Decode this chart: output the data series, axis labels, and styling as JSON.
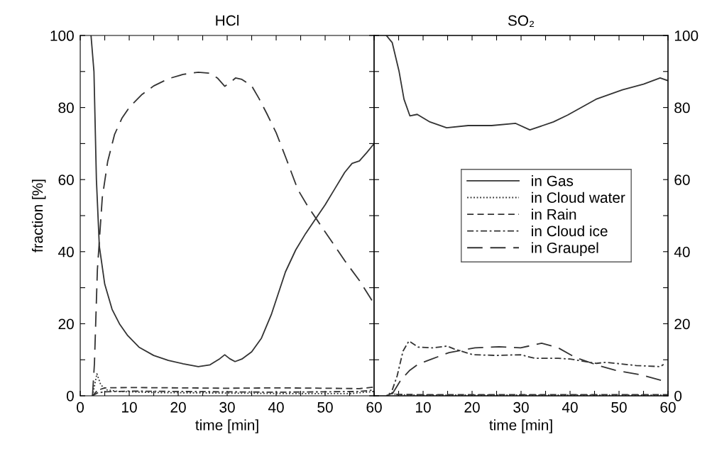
{
  "chart_data": [
    {
      "type": "line",
      "title": "HCl",
      "xlabel": "time [min]",
      "ylabel": "fraction [%]",
      "xlim": [
        0,
        60
      ],
      "xticks": [
        0,
        {
          "value": 5,
          "label": null
        },
        10,
        {
          "value": 15,
          "label": null
        },
        20,
        {
          "value": 25,
          "label": null
        },
        30,
        {
          "value": 35,
          "label": null
        },
        40,
        {
          "value": 45,
          "label": null
        },
        50,
        {
          "value": 55,
          "label": null
        },
        60
      ],
      "ylim": [
        0,
        100
      ],
      "yticks": [
        0,
        {
          "value": 10,
          "label": null
        },
        20,
        {
          "value": 30,
          "label": null
        },
        40,
        {
          "value": 50,
          "label": null
        },
        60,
        {
          "value": 70,
          "label": null
        },
        80,
        {
          "value": 90,
          "label": null
        },
        100
      ],
      "grid": false,
      "legend": false,
      "series": [
        {
          "color": "#333333",
          "line_style": "solid",
          "x": [
            2.2,
            2.8,
            3.3,
            3.9,
            5,
            6.5,
            8,
            9.7,
            12,
            15,
            18,
            21,
            24.1,
            26.5,
            28.5,
            29.5,
            30.5,
            31.6,
            33,
            35,
            37,
            39,
            41.9,
            44,
            46,
            48.2,
            50,
            52,
            54,
            55.5,
            57,
            58.5,
            60
          ],
          "values": [
            100,
            90,
            60,
            41.5,
            31,
            24,
            20,
            16.7,
            13.5,
            11.2,
            9.8,
            8.9,
            8.1,
            8.6,
            10.3,
            11.4,
            10.3,
            9.5,
            10.2,
            12.2,
            16,
            22.5,
            34.4,
            40.5,
            45,
            49.4,
            53,
            57.5,
            62,
            64.5,
            65.2,
            67.5,
            70
          ]
        },
        {
          "color": "#333333",
          "line_style": "dotted",
          "x": [
            2.5,
            3.4,
            4.2,
            5.5,
            8,
            15,
            25,
            35,
            45,
            55,
            60
          ],
          "values": [
            0,
            6.1,
            3,
            1.6,
            1.2,
            0.9,
            0.8,
            0.7,
            0.6,
            0.6,
            1.2
          ]
        },
        {
          "color": "#333333",
          "line_style": "dashed",
          "x": [
            2.5,
            3.5,
            5,
            10,
            20,
            30,
            40,
            50,
            57,
            60
          ],
          "values": [
            0,
            1.5,
            2.2,
            2.3,
            2.2,
            2.1,
            2.2,
            2.1,
            2.0,
            2.4
          ]
        },
        {
          "color": "#333333",
          "line_style": "dashdot",
          "x": [
            2.5,
            3.5,
            5,
            10,
            20,
            30,
            40,
            50,
            57,
            60
          ],
          "values": [
            0,
            0.8,
            1.1,
            1.3,
            1.2,
            1.1,
            1.0,
            1.1,
            1.2,
            1.6
          ]
        },
        {
          "color": "#333333",
          "line_style": "longdash",
          "x": [
            2.5,
            2.9,
            3.5,
            4.5,
            5.6,
            7,
            8.5,
            10,
            12.5,
            15,
            18,
            21,
            24.1,
            26.5,
            28,
            29.5,
            30.5,
            31.7,
            33,
            35,
            36.5,
            38.1,
            40,
            42,
            44.4,
            46.5,
            48.5,
            51,
            54,
            57,
            60
          ],
          "values": [
            0,
            9,
            35,
            55,
            65,
            72.5,
            77,
            80,
            83.5,
            86,
            88,
            89.2,
            89.8,
            89.5,
            88.2,
            85.9,
            86.8,
            88.2,
            87.8,
            86,
            82.5,
            78.3,
            73,
            66,
            57.3,
            52.5,
            48.5,
            43.5,
            37.5,
            32,
            25.5
          ]
        }
      ]
    },
    {
      "type": "line",
      "title": "SO₂",
      "xlabel": "time [min]",
      "xlim": [
        0,
        60
      ],
      "xticks": [
        {
          "value": 0,
          "label": null
        },
        {
          "value": 5,
          "label": null
        },
        10,
        {
          "value": 15,
          "label": null
        },
        20,
        {
          "value": 25,
          "label": null
        },
        30,
        {
          "value": 35,
          "label": null
        },
        40,
        {
          "value": 45,
          "label": null
        },
        50,
        {
          "value": 55,
          "label": null
        },
        60
      ],
      "y2lim": [
        0,
        100
      ],
      "y2ticks": [
        0,
        {
          "value": 10,
          "label": null
        },
        20,
        {
          "value": 30,
          "label": null
        },
        40,
        {
          "value": 50,
          "label": null
        },
        60,
        {
          "value": 70,
          "label": null
        },
        80,
        {
          "value": 90,
          "label": null
        },
        100
      ],
      "grid": false,
      "legend": "right",
      "series": [
        {
          "name": "in Gas",
          "axis": "y2",
          "color": "#333333",
          "line_style": "solid",
          "x": [
            2.5,
            3.7,
            5.1,
            6.1,
            7.3,
            8.8,
            11.4,
            14.8,
            19.2,
            24,
            28.9,
            31.8,
            36.6,
            39.5,
            45.3,
            50.7,
            55,
            58.4,
            59.9
          ],
          "values": [
            100,
            98,
            90,
            82.3,
            77.7,
            78.1,
            76,
            74.4,
            75,
            75,
            75.6,
            73.8,
            76,
            77.9,
            82.3,
            84.9,
            86.5,
            88.2,
            87.5
          ]
        },
        {
          "name": "in Cloud water",
          "axis": "y2",
          "color": "#333333",
          "line_style": "dotted",
          "x": [
            2.5,
            3.5,
            4.5,
            10,
            30,
            60
          ],
          "values": [
            0,
            1,
            0.3,
            0.2,
            0.2,
            0.2
          ]
        },
        {
          "name": "in Rain",
          "axis": "y2",
          "color": "#333333",
          "line_style": "dashed",
          "x": [
            2.5,
            3.5,
            4.5,
            10,
            30,
            60
          ],
          "values": [
            0,
            0.6,
            0.4,
            0.3,
            0.3,
            0.3
          ]
        },
        {
          "name": "in Cloud ice",
          "axis": "y2",
          "color": "#333333",
          "line_style": "dashdot",
          "x": [
            3.7,
            4.7,
            5.9,
            7.1,
            9,
            12,
            14.9,
            16.3,
            20.2,
            25,
            29.9,
            32.8,
            37.6,
            40,
            45.4,
            47.3,
            53.5,
            58.4,
            59.1
          ],
          "values": [
            1.6,
            5.5,
            12.4,
            15.2,
            13.5,
            13.3,
            13.8,
            13,
            11.4,
            11.2,
            11.4,
            10.4,
            10.4,
            10.2,
            9,
            9.3,
            8.4,
            8.1,
            8.7
          ]
        },
        {
          "name": "in Graupel",
          "axis": "y2",
          "color": "#333333",
          "line_style": "longdash",
          "x": [
            3.7,
            5.5,
            7.3,
            9,
            11.4,
            15.3,
            20.6,
            25.5,
            29.9,
            34.2,
            37.6,
            41,
            45.8,
            49.2,
            54.5,
            59.6
          ],
          "values": [
            0.5,
            4.5,
            7.1,
            8.8,
            10,
            12,
            13.3,
            13.6,
            13.3,
            14.6,
            13.3,
            10.7,
            8.4,
            7.1,
            5.8,
            3.9
          ]
        }
      ]
    }
  ]
}
